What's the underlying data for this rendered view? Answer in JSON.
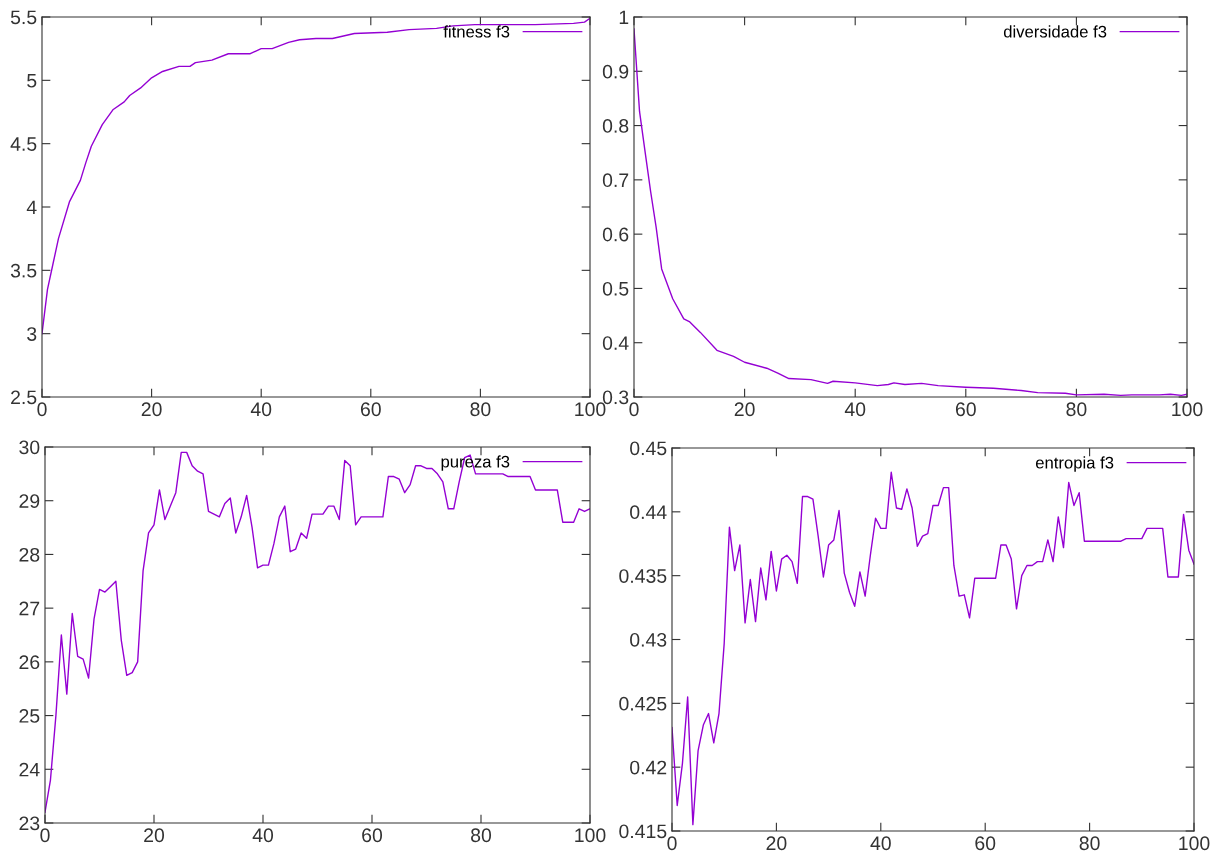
{
  "chart_data": [
    {
      "type": "line",
      "legend": "top right",
      "xlim": [
        0,
        100
      ],
      "ylim": [
        2.5,
        5.5
      ],
      "xticks": [
        0,
        20,
        40,
        60,
        80,
        100
      ],
      "yticks": [
        2.5,
        3,
        3.5,
        4,
        4.5,
        5,
        5.5
      ],
      "grid": false,
      "x": [
        0,
        1,
        2,
        3,
        5,
        7,
        8,
        9,
        11,
        13,
        15,
        16,
        18,
        20,
        22,
        25,
        27,
        28,
        31,
        34,
        38,
        40,
        42,
        45,
        47,
        50,
        53,
        55,
        57,
        63,
        67,
        72,
        75,
        79,
        90,
        97,
        99,
        100
      ],
      "series": [
        {
          "name": "fitness f3",
          "color": "#9400d3",
          "values": [
            3.0,
            3.35,
            3.55,
            3.75,
            4.04,
            4.21,
            4.35,
            4.48,
            4.65,
            4.77,
            4.83,
            4.88,
            4.94,
            5.02,
            5.07,
            5.11,
            5.11,
            5.14,
            5.16,
            5.21,
            5.21,
            5.25,
            5.25,
            5.3,
            5.32,
            5.33,
            5.33,
            5.35,
            5.37,
            5.38,
            5.4,
            5.41,
            5.43,
            5.44,
            5.44,
            5.45,
            5.46,
            5.49
          ]
        }
      ]
    },
    {
      "type": "line",
      "legend": "top right",
      "xlim": [
        0,
        100
      ],
      "ylim": [
        0.3,
        1
      ],
      "xticks": [
        0,
        20,
        40,
        60,
        80,
        100
      ],
      "yticks": [
        0.3,
        0.4,
        0.5,
        0.6,
        0.7,
        0.8,
        0.9,
        1
      ],
      "grid": false,
      "x": [
        0,
        1,
        2,
        3,
        4,
        5,
        7,
        9,
        10,
        12,
        15,
        18,
        20,
        24,
        26,
        28,
        32,
        35,
        36,
        40,
        44,
        46,
        47,
        49,
        52,
        55,
        60,
        65,
        70,
        73,
        78,
        80,
        85,
        88,
        90,
        95,
        97,
        99,
        100
      ],
      "series": [
        {
          "name": "diversidade f3",
          "color": "#9400d3",
          "values": [
            0.978,
            0.826,
            0.752,
            0.679,
            0.613,
            0.536,
            0.481,
            0.444,
            0.439,
            0.419,
            0.386,
            0.375,
            0.364,
            0.353,
            0.344,
            0.334,
            0.332,
            0.325,
            0.329,
            0.326,
            0.321,
            0.323,
            0.326,
            0.323,
            0.325,
            0.321,
            0.318,
            0.316,
            0.312,
            0.308,
            0.307,
            0.304,
            0.305,
            0.303,
            0.304,
            0.304,
            0.305,
            0.303,
            0.305
          ]
        }
      ]
    },
    {
      "type": "line",
      "legend": "top right",
      "xlim": [
        0,
        100
      ],
      "ylim": [
        23,
        30
      ],
      "xticks": [
        0,
        20,
        40,
        60,
        80,
        100
      ],
      "yticks": [
        23,
        24,
        25,
        26,
        27,
        28,
        29,
        30
      ],
      "grid": false,
      "x": [
        0,
        1,
        2,
        3,
        4,
        5,
        6,
        7,
        8,
        9,
        10,
        11,
        12,
        13,
        14,
        15,
        16,
        17,
        18,
        19,
        20,
        21,
        22,
        23,
        24,
        25,
        26,
        27,
        28,
        29,
        30,
        31,
        32,
        33,
        34,
        35,
        36,
        37,
        38,
        39,
        40,
        41,
        42,
        43,
        44,
        45,
        46,
        47,
        48,
        49,
        50,
        51,
        52,
        53,
        54,
        55,
        56,
        57,
        58,
        59,
        60,
        61,
        62,
        63,
        64,
        65,
        66,
        67,
        68,
        69,
        70,
        71,
        72,
        73,
        74,
        75,
        76,
        77,
        78,
        79,
        80,
        81,
        82,
        83,
        84,
        85,
        86,
        87,
        88,
        89,
        90,
        91,
        92,
        93,
        94,
        95,
        96,
        97,
        98,
        99,
        100
      ],
      "series": [
        {
          "name": "pureza f3",
          "color": "#9400d3",
          "values": [
            23.2,
            23.8,
            25.0,
            26.5,
            25.4,
            26.9,
            26.1,
            26.05,
            25.7,
            26.8,
            27.35,
            27.3,
            27.4,
            27.5,
            26.4,
            25.75,
            25.8,
            26.0,
            27.7,
            28.4,
            28.55,
            29.2,
            28.65,
            28.9,
            29.15,
            29.9,
            29.9,
            29.65,
            29.55,
            29.5,
            28.8,
            28.75,
            28.7,
            28.95,
            29.05,
            28.4,
            28.7,
            29.1,
            28.5,
            27.75,
            27.8,
            27.8,
            28.2,
            28.7,
            28.9,
            28.05,
            28.1,
            28.4,
            28.3,
            28.75,
            28.75,
            28.75,
            28.9,
            28.9,
            28.65,
            29.75,
            29.65,
            28.55,
            28.7,
            28.7,
            28.7,
            28.7,
            28.7,
            29.45,
            29.45,
            29.4,
            29.15,
            29.3,
            29.65,
            29.65,
            29.6,
            29.6,
            29.5,
            29.35,
            28.85,
            28.85,
            29.35,
            29.8,
            29.85,
            29.5,
            29.5,
            29.5,
            29.5,
            29.5,
            29.5,
            29.45,
            29.45,
            29.45,
            29.45,
            29.45,
            29.2,
            29.2,
            29.2,
            29.2,
            29.2,
            28.6,
            28.6,
            28.6,
            28.85,
            28.8,
            28.85
          ]
        }
      ]
    },
    {
      "type": "line",
      "legend": "top right",
      "xlim": [
        0,
        100
      ],
      "ylim": [
        0.415,
        0.445
      ],
      "xticks": [
        0,
        20,
        40,
        60,
        80,
        100
      ],
      "yticks": [
        0.415,
        0.42,
        0.425,
        0.43,
        0.435,
        0.44,
        {
          "value": 0.445,
          "label": "0.45"
        }
      ],
      "grid": false,
      "x": [
        0,
        1,
        2,
        3,
        4,
        5,
        6,
        7,
        8,
        9,
        10,
        11,
        12,
        13,
        14,
        15,
        16,
        17,
        18,
        19,
        20,
        21,
        22,
        23,
        24,
        25,
        26,
        27,
        28,
        29,
        30,
        31,
        32,
        33,
        34,
        35,
        36,
        37,
        38,
        39,
        40,
        41,
        42,
        43,
        44,
        45,
        46,
        47,
        48,
        49,
        50,
        51,
        52,
        53,
        54,
        55,
        56,
        57,
        58,
        59,
        60,
        61,
        62,
        63,
        64,
        65,
        66,
        67,
        68,
        69,
        70,
        71,
        72,
        73,
        74,
        75,
        76,
        77,
        78,
        79,
        80,
        81,
        82,
        83,
        84,
        85,
        86,
        87,
        88,
        89,
        90,
        91,
        92,
        93,
        94,
        95,
        96,
        97,
        98,
        99,
        100
      ],
      "series": [
        {
          "name": "entropia f3",
          "color": "#9400d3",
          "values": [
            0.4231,
            0.417,
            0.4203,
            0.4255,
            0.4155,
            0.4213,
            0.4233,
            0.4242,
            0.4219,
            0.4242,
            0.4297,
            0.4388,
            0.4354,
            0.4374,
            0.4313,
            0.4347,
            0.4314,
            0.4356,
            0.4331,
            0.4369,
            0.4338,
            0.4363,
            0.4366,
            0.4361,
            0.4344,
            0.4412,
            0.4412,
            0.441,
            0.4381,
            0.4349,
            0.4374,
            0.4378,
            0.4401,
            0.4352,
            0.4337,
            0.4326,
            0.4353,
            0.4334,
            0.4366,
            0.4395,
            0.4387,
            0.4387,
            0.4431,
            0.4403,
            0.4402,
            0.4418,
            0.4403,
            0.4373,
            0.4381,
            0.4383,
            0.4405,
            0.4405,
            0.4419,
            0.4419,
            0.4358,
            0.4334,
            0.4335,
            0.4317,
            0.4348,
            0.4348,
            0.4348,
            0.4348,
            0.4348,
            0.4374,
            0.4374,
            0.4363,
            0.4324,
            0.435,
            0.4358,
            0.4358,
            0.4361,
            0.4361,
            0.4378,
            0.4361,
            0.4396,
            0.4372,
            0.4423,
            0.4405,
            0.4415,
            0.4377,
            0.4377,
            0.4377,
            0.4377,
            0.4377,
            0.4377,
            0.4377,
            0.4377,
            0.4379,
            0.4379,
            0.4379,
            0.4379,
            0.4387,
            0.4387,
            0.4387,
            0.4387,
            0.4349,
            0.4349,
            0.4349,
            0.4398,
            0.437,
            0.4359
          ]
        }
      ]
    }
  ]
}
